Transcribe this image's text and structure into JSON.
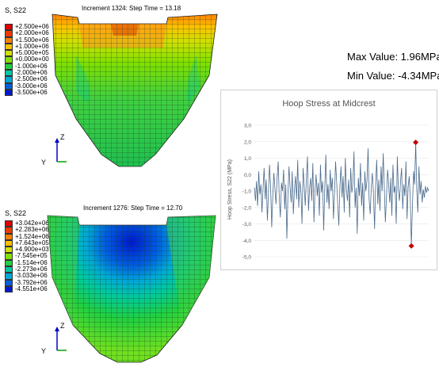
{
  "top_model": {
    "legend_title": "S, S22",
    "legend_items": [
      {
        "label": "+2.500e+06",
        "color": "#e00000"
      },
      {
        "label": "+2.000e+06",
        "color": "#f23a00"
      },
      {
        "label": "+1.500e+06",
        "color": "#ff8000"
      },
      {
        "label": "+1.000e+06",
        "color": "#ffc000"
      },
      {
        "label": "+5.000e+05",
        "color": "#d0e000"
      },
      {
        "label": "+0.000e+00",
        "color": "#80e000"
      },
      {
        "label": "-1.000e+06",
        "color": "#20d040"
      },
      {
        "label": "-2.000e+06",
        "color": "#00c8a0"
      },
      {
        "label": "-2.500e+06",
        "color": "#00a8d8"
      },
      {
        "label": "-3.000e+06",
        "color": "#0060e0"
      },
      {
        "label": "-3.500e+06",
        "color": "#0018d0"
      }
    ],
    "increment_text": "Increment   1324: Step Time =    13.18",
    "axis_z": "Z",
    "axis_y": "Y"
  },
  "bottom_model": {
    "legend_title": "S, S22",
    "legend_items": [
      {
        "label": "+3.042e+06",
        "color": "#e00000"
      },
      {
        "label": "+2.283e+06",
        "color": "#f23a00"
      },
      {
        "label": "+1.524e+06",
        "color": "#ff8000"
      },
      {
        "label": "+7.643e+05",
        "color": "#ffc000"
      },
      {
        "label": "+4.900e+03",
        "color": "#d0e000"
      },
      {
        "label": "-7.545e+05",
        "color": "#80e000"
      },
      {
        "label": "-1.514e+06",
        "color": "#20d040"
      },
      {
        "label": "-2.273e+06",
        "color": "#00c8a0"
      },
      {
        "label": "-3.033e+06",
        "color": "#00a8d8"
      },
      {
        "label": "-3.792e+06",
        "color": "#0060e0"
      },
      {
        "label": "-4.551e+06",
        "color": "#0018d0"
      }
    ],
    "increment_text": "Increment   1276: Step Time =    12.70",
    "axis_z": "Z",
    "axis_y": "Y"
  },
  "max_value": "Max Value: 1.96MPa",
  "min_value": "Min Value: -4.34MPa",
  "chart_data": {
    "type": "line",
    "title": "Hoop Stress at Midcrest",
    "ylabel": "Hoop Stress, S22 (MPa)",
    "xlabel": "",
    "ylim": [
      -5.0,
      3.0
    ],
    "yticks": [
      "3,0",
      "2,0",
      "1,0",
      "0,0",
      "-1,0",
      "-2,0",
      "-3,0",
      "-4,0",
      "-5,0"
    ],
    "grid": true,
    "series_color": "#4a6a8c",
    "marker_color": "#c00000",
    "markers": [
      {
        "label": "max",
        "y": 1.96
      },
      {
        "label": "min",
        "y": -4.34
      }
    ],
    "values": [
      -0.8,
      -1.6,
      -0.4,
      -1.9,
      0.2,
      -1.2,
      -0.6,
      -2.3,
      -0.9,
      0.4,
      -1.5,
      -0.3,
      -2.8,
      -1.1,
      0.6,
      -0.7,
      -3.2,
      -1.3,
      0.1,
      -0.9,
      -1.8,
      -0.2,
      0.8,
      -1.4,
      -2.6,
      -0.5,
      -1.0,
      0.3,
      -2.1,
      -0.6,
      -3.9,
      -1.2,
      0.5,
      -0.8,
      -1.7,
      0.2,
      -2.4,
      -0.9,
      -0.1,
      -1.5,
      0.9,
      -2.0,
      -0.4,
      -1.1,
      -3.0,
      0.4,
      -0.7,
      -1.9,
      -0.3,
      1.1,
      -2.2,
      -0.8,
      -0.2,
      -1.6,
      0.7,
      -2.9,
      -1.0,
      0.0,
      -1.3,
      -0.5,
      -2.5,
      0.6,
      -1.1,
      -0.4,
      -3.4,
      -0.9,
      1.2,
      -1.7,
      -0.6,
      -2.1,
      0.3,
      -1.0,
      -0.2,
      -2.7,
      -1.2,
      0.8,
      -0.5,
      -1.8,
      -3.1,
      -0.7,
      0.5,
      -1.4,
      -0.1,
      -2.3,
      1.0,
      -0.9,
      -1.6,
      -0.3,
      -2.6,
      0.4,
      -1.1,
      -0.6,
      1.4,
      -2.0,
      -0.8,
      -3.6,
      -0.2,
      -1.3,
      0.7,
      -1.9,
      -0.5,
      -2.8,
      0.2,
      -1.0,
      -0.4,
      1.6,
      -1.5,
      -2.4,
      -0.7,
      0.1,
      -1.2,
      -3.3,
      -0.6,
      0.9,
      -1.8,
      -0.3,
      -2.2,
      0.5,
      -1.0,
      1.3,
      -0.8,
      -2.9,
      -1.4,
      0.3,
      -0.5,
      -1.7,
      -0.2,
      -2.5,
      0.6,
      -1.1,
      -0.7,
      -3.0,
      1.1,
      -0.9,
      -1.6,
      -0.4,
      0.4,
      -2.1,
      -0.6,
      -1.3,
      0.8,
      -2.7,
      -0.8,
      -0.1,
      -1.5,
      -4.34,
      -1.9,
      0.2,
      -0.6,
      1.96,
      -1.0,
      -2.3,
      0.5,
      -1.2,
      -0.4,
      -1.7,
      -0.9,
      -1.4,
      -0.7,
      -1.1,
      -0.8,
      -1.0
    ]
  }
}
